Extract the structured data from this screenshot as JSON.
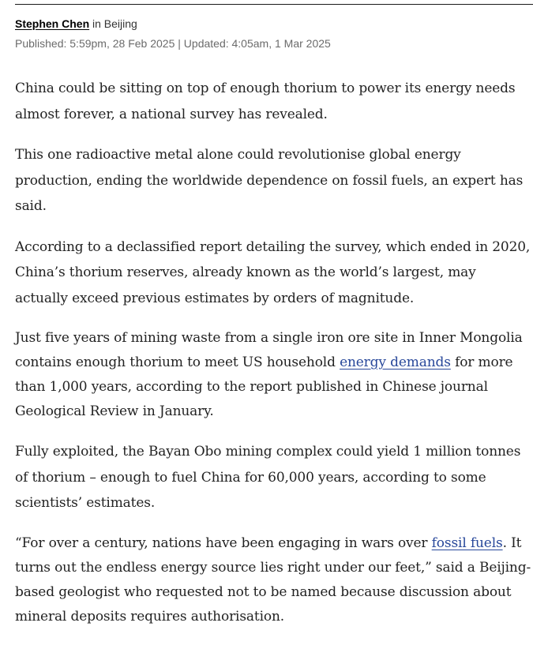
{
  "byline": {
    "author": "Stephen Chen",
    "location_prefix": " in Beijing"
  },
  "meta": {
    "published": "Published: 5:59pm, 28 Feb 2025",
    "separator": " | ",
    "updated": "Updated: 4:05am, 1 Mar 2025"
  },
  "article": {
    "p1": "China could be sitting on top of enough thorium to power its energy needs almost forever, a national survey has revealed.",
    "p2": "This one radioactive metal alone could revolutionise global energy production, ending the worldwide dependence on fossil fuels, an expert has said.",
    "p3": "According to a declassified report detailing the survey, which ended in 2020, China’s thorium reserves, already known as the world’s largest, may actually exceed previous estimates by orders of magnitude.",
    "p4": {
      "before": "Just five years of mining waste from a single iron ore site in Inner Mongolia contains enough thorium to meet US household ",
      "link": "energy demands",
      "after": " for more than 1,000 years, according to the report published in Chinese journal Geological Review in January."
    },
    "p5": "Fully exploited, the Bayan Obo mining complex could yield 1 million tonnes of thorium – enough to fuel China for 60,000 years, according to some scientists’ estimates.",
    "p6": {
      "before": "“For over a century, nations have been engaging in wars over ",
      "link": "fossil fuels",
      "after": ". It turns out the endless energy source lies right under our feet,” said a Beijing-based geologist who requested not to be named because discussion about mineral deposits requires authorisation."
    }
  },
  "colors": {
    "link": "#27479a",
    "body_text": "#222222",
    "meta_text": "#6b6b6b"
  }
}
